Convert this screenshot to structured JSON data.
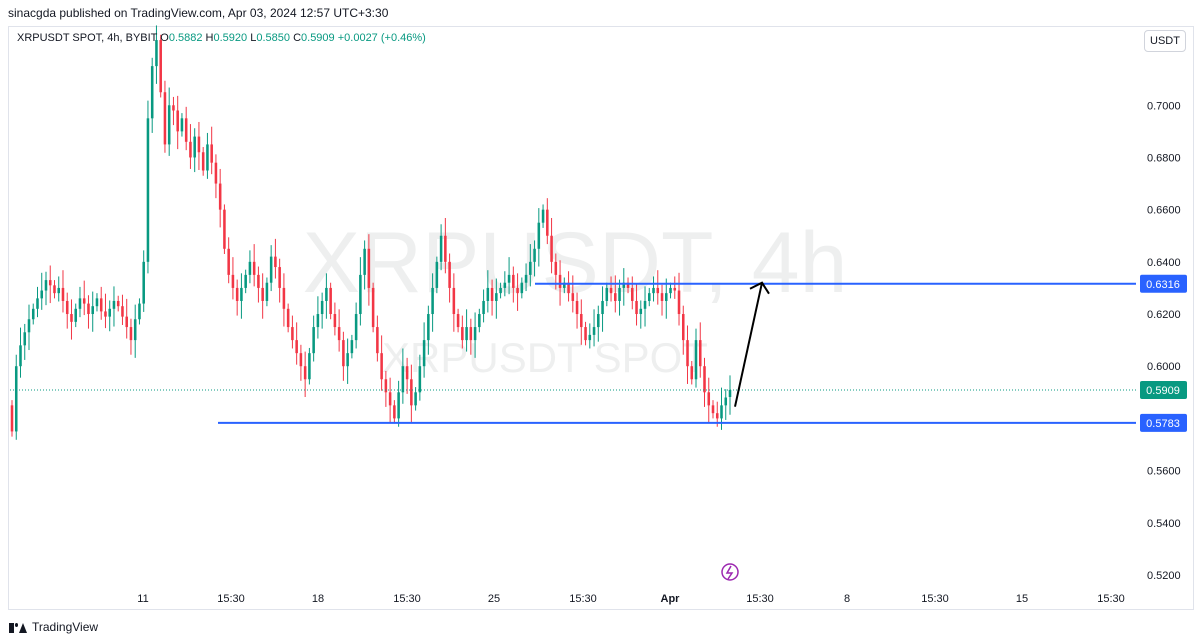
{
  "publisher": "sinacgda published on TradingView.com, Apr 03, 2024 12:57 UTC+3:30",
  "legend": {
    "symbol": "XRPUSDT SPOT, 4h, BYBIT",
    "open_label": "O",
    "open": "0.5882",
    "high_label": "H",
    "high": "0.5920",
    "low_label": "L",
    "low": "0.5850",
    "close_label": "C",
    "close": "0.5909",
    "change": "+0.0027 (+0.46%)"
  },
  "unit_button": "USDT",
  "footer": {
    "brand": "TradingView",
    "logo_icon": "tradingview-logo-icon"
  },
  "colors": {
    "up": "#089981",
    "down": "#f23645",
    "level": "#2962ff",
    "text": "#131722"
  },
  "chart_data": {
    "type": "candlestick",
    "watermark": "XRPUSDT, 4h",
    "watermark_sub": "XRPUSDT SPOT",
    "yaxis": {
      "ticks": [
        "0.7000",
        "0.6800",
        "0.6600",
        "0.6400",
        "0.6200",
        "0.6000",
        "0.5600",
        "0.5400",
        "0.5200"
      ],
      "range": [
        0.515,
        0.73
      ]
    },
    "xaxis": {
      "ticks": [
        "11",
        "15:30",
        "18",
        "15:30",
        "25",
        "15:30",
        "Apr",
        "15:30",
        "8",
        "15:30",
        "15",
        "15:30"
      ]
    },
    "levels": [
      {
        "value": 0.6316,
        "label": "0.6316",
        "color": "#2962ff"
      },
      {
        "value": 0.5783,
        "label": "0.5783",
        "color": "#2962ff"
      }
    ],
    "last_price": {
      "value": 0.5909,
      "label": "0.5909",
      "color": "#089981"
    },
    "projection_arrow": {
      "from": 0.5845,
      "to": 0.632
    },
    "event_icon": "lightning-icon",
    "candles_close": [
      0.575,
      0.6,
      0.608,
      0.613,
      0.618,
      0.622,
      0.626,
      0.629,
      0.633,
      0.631,
      0.628,
      0.63,
      0.625,
      0.62,
      0.617,
      0.622,
      0.626,
      0.624,
      0.62,
      0.623,
      0.626,
      0.621,
      0.619,
      0.622,
      0.625,
      0.623,
      0.619,
      0.615,
      0.61,
      0.618,
      0.624,
      0.64,
      0.695,
      0.715,
      0.725,
      0.705,
      0.685,
      0.7,
      0.698,
      0.69,
      0.695,
      0.686,
      0.68,
      0.688,
      0.682,
      0.675,
      0.685,
      0.678,
      0.67,
      0.66,
      0.645,
      0.635,
      0.63,
      0.625,
      0.63,
      0.635,
      0.64,
      0.635,
      0.63,
      0.625,
      0.632,
      0.642,
      0.638,
      0.63,
      0.622,
      0.615,
      0.61,
      0.605,
      0.6,
      0.595,
      0.605,
      0.615,
      0.62,
      0.625,
      0.63,
      0.62,
      0.615,
      0.61,
      0.6,
      0.605,
      0.61,
      0.62,
      0.635,
      0.645,
      0.63,
      0.615,
      0.605,
      0.595,
      0.59,
      0.585,
      0.58,
      0.59,
      0.6,
      0.595,
      0.585,
      0.59,
      0.6,
      0.61,
      0.62,
      0.63,
      0.64,
      0.65,
      0.64,
      0.63,
      0.62,
      0.615,
      0.61,
      0.615,
      0.61,
      0.615,
      0.62,
      0.625,
      0.63,
      0.625,
      0.628,
      0.63,
      0.632,
      0.635,
      0.63,
      0.628,
      0.632,
      0.635,
      0.64,
      0.645,
      0.655,
      0.66,
      0.65,
      0.64,
      0.635,
      0.63,
      0.632,
      0.628,
      0.625,
      0.62,
      0.615,
      0.61,
      0.612,
      0.615,
      0.62,
      0.625,
      0.63,
      0.628,
      0.625,
      0.63,
      0.632,
      0.63,
      0.625,
      0.62,
      0.622,
      0.625,
      0.628,
      0.63,
      0.628,
      0.625,
      0.628,
      0.63,
      0.629,
      0.62,
      0.61,
      0.6,
      0.595,
      0.61,
      0.6,
      0.59,
      0.585,
      0.582,
      0.58,
      0.585,
      0.588,
      0.5909
    ],
    "candles_open": [
      0.585,
      0.575,
      0.6,
      0.608,
      0.613,
      0.618,
      0.622,
      0.626,
      0.629,
      0.633,
      0.631,
      0.628,
      0.63,
      0.625,
      0.62,
      0.617,
      0.622,
      0.626,
      0.624,
      0.62,
      0.623,
      0.626,
      0.621,
      0.619,
      0.622,
      0.625,
      0.623,
      0.619,
      0.615,
      0.61,
      0.618,
      0.624,
      0.64,
      0.695,
      0.715,
      0.725,
      0.705,
      0.685,
      0.7,
      0.698,
      0.69,
      0.695,
      0.686,
      0.68,
      0.688,
      0.682,
      0.675,
      0.685,
      0.678,
      0.67,
      0.66,
      0.645,
      0.635,
      0.63,
      0.625,
      0.63,
      0.635,
      0.64,
      0.635,
      0.63,
      0.625,
      0.632,
      0.642,
      0.638,
      0.63,
      0.622,
      0.615,
      0.61,
      0.605,
      0.6,
      0.595,
      0.605,
      0.615,
      0.62,
      0.625,
      0.63,
      0.62,
      0.615,
      0.61,
      0.6,
      0.605,
      0.61,
      0.62,
      0.635,
      0.645,
      0.63,
      0.615,
      0.605,
      0.595,
      0.59,
      0.585,
      0.58,
      0.59,
      0.6,
      0.595,
      0.585,
      0.59,
      0.6,
      0.61,
      0.62,
      0.63,
      0.64,
      0.65,
      0.64,
      0.63,
      0.62,
      0.615,
      0.61,
      0.615,
      0.61,
      0.615,
      0.62,
      0.625,
      0.63,
      0.625,
      0.628,
      0.63,
      0.632,
      0.635,
      0.63,
      0.628,
      0.632,
      0.635,
      0.64,
      0.645,
      0.655,
      0.66,
      0.65,
      0.64,
      0.635,
      0.63,
      0.632,
      0.628,
      0.625,
      0.62,
      0.615,
      0.61,
      0.612,
      0.615,
      0.62,
      0.625,
      0.63,
      0.628,
      0.625,
      0.63,
      0.632,
      0.63,
      0.625,
      0.62,
      0.622,
      0.625,
      0.628,
      0.63,
      0.628,
      0.625,
      0.628,
      0.63,
      0.629,
      0.62,
      0.61,
      0.6,
      0.595,
      0.61,
      0.6,
      0.59,
      0.585,
      0.582,
      0.58,
      0.585,
      0.5882
    ]
  }
}
